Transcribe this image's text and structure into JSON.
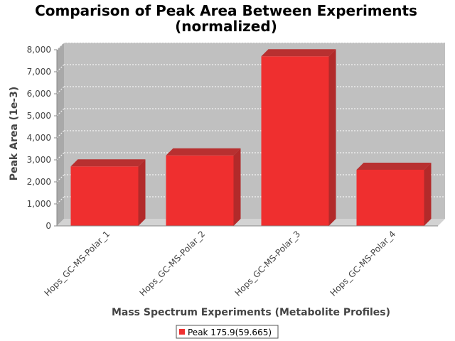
{
  "chart_data": {
    "type": "bar",
    "title": "Comparison of Peak Area Between Experiments",
    "subtitle": "(normalized)",
    "xlabel": "Mass Spectrum Experiments (Metabolite Profiles)",
    "ylabel": "Peak Area (1e-3)",
    "categories": [
      "Hops_GC-MS-Polar_1",
      "Hops_GC-MS-Polar_2",
      "Hops_GC-MS-Polar_3",
      "Hops_GC-MS-Polar_4"
    ],
    "series": [
      {
        "name": "Peak 175.9(59.665)",
        "values": [
          2700,
          3200,
          7700,
          2550
        ],
        "color": "#ef2f2f"
      }
    ],
    "ylim": [
      0,
      8000
    ],
    "yticks": [
      0,
      1000,
      2000,
      3000,
      4000,
      5000,
      6000,
      7000,
      8000
    ],
    "ytick_labels": [
      "0",
      "1,000",
      "2,000",
      "3,000",
      "4,000",
      "5,000",
      "6,000",
      "7,000",
      "8,000"
    ],
    "grid": true,
    "legend_position": "bottom",
    "plot_background": "#c0c0c0",
    "style": "3d"
  }
}
